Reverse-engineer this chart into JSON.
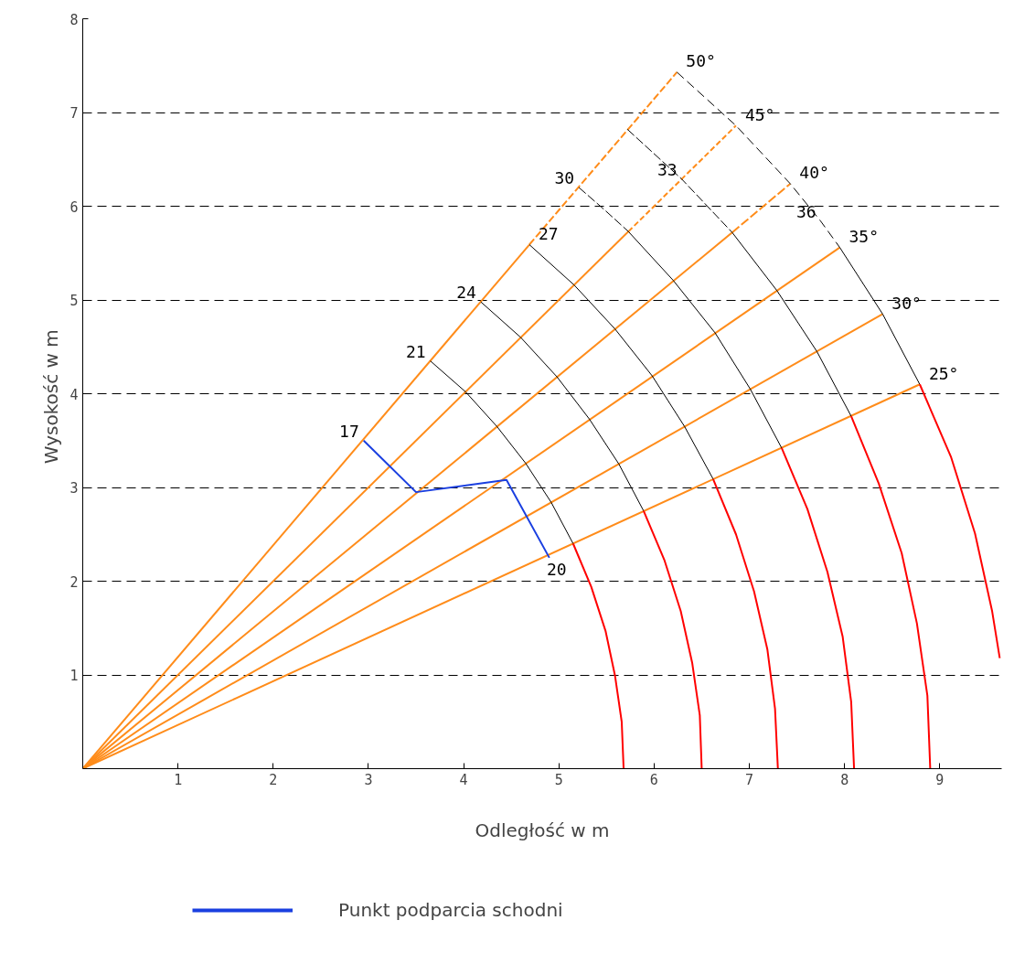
{
  "chart_data": {
    "type": "line",
    "xlabel": "Odległość w m",
    "ylabel": "Wysokość  w m",
    "xlim": [
      0,
      9.65
    ],
    "ylim": [
      0,
      8
    ],
    "xticks": [
      1,
      2,
      3,
      4,
      5,
      6,
      7,
      8,
      9
    ],
    "yticks": [
      1,
      2,
      3,
      4,
      5,
      6,
      7,
      8
    ],
    "grid": "y",
    "legend": "bottom",
    "series": [
      {
        "color": "#ff8c1a",
        "line_style": "solid",
        "x": [
          0,
          8.79
        ],
        "values": [
          0,
          4.1
        ]
      },
      {
        "color": "#ff8c1a",
        "line_style": "solid",
        "x": [
          0,
          8.4
        ],
        "values": [
          0,
          4.85
        ]
      },
      {
        "color": "#ff8c1a",
        "line_style": "solid",
        "x": [
          0,
          7.95
        ],
        "values": [
          0,
          5.56
        ]
      },
      {
        "color": "#ff8c1a",
        "line_style": "solid",
        "x": [
          0,
          6.82
        ],
        "values": [
          0,
          5.72
        ]
      },
      {
        "color": "#ff8c1a",
        "line_style": "dashed",
        "x": [
          6.82,
          7.43
        ],
        "values": [
          5.72,
          6.24
        ]
      },
      {
        "color": "#ff8c1a",
        "line_style": "solid",
        "x": [
          0,
          5.73
        ],
        "values": [
          0,
          5.73
        ]
      },
      {
        "color": "#ff8c1a",
        "line_style": "dashed",
        "x": [
          5.73,
          6.86
        ],
        "values": [
          5.73,
          6.86
        ]
      },
      {
        "color": "#ff8c1a",
        "line_style": "solid",
        "x": [
          0,
          4.69
        ],
        "values": [
          0,
          5.59
        ]
      },
      {
        "color": "#ff8c1a",
        "line_style": "dashed",
        "x": [
          4.69,
          6.24
        ],
        "values": [
          5.59,
          7.43
        ]
      },
      {
        "color": "#000000",
        "line_style": "solid",
        "x": [
          3.65,
          4.02,
          4.35,
          4.65,
          4.92,
          5.15
        ],
        "values": [
          4.35,
          4.02,
          3.65,
          3.26,
          2.84,
          2.4
        ]
      },
      {
        "color": "#000000",
        "line_style": "solid",
        "x": [
          4.18,
          4.6,
          4.98,
          5.32,
          5.63,
          5.89
        ],
        "values": [
          4.98,
          4.6,
          4.18,
          3.73,
          3.25,
          2.75
        ]
      },
      {
        "color": "#000000",
        "line_style": "solid",
        "x": [
          4.69,
          5.16,
          5.59,
          5.98,
          6.32,
          6.62
        ],
        "values": [
          5.59,
          5.16,
          4.69,
          4.19,
          3.65,
          3.09
        ]
      },
      {
        "color": "#000000",
        "line_style": "dashed",
        "x": [
          5.21,
          5.47,
          5.73
        ],
        "values": [
          6.2,
          5.97,
          5.73
        ]
      },
      {
        "color": "#000000",
        "line_style": "solid",
        "x": [
          5.73,
          6.2,
          6.64,
          7.01,
          7.34
        ],
        "values": [
          5.73,
          5.21,
          4.65,
          4.05,
          3.42
        ]
      },
      {
        "color": "#000000",
        "line_style": "dashed",
        "x": [
          5.72,
          6.29,
          6.82
        ],
        "values": [
          6.82,
          6.29,
          5.72
        ]
      },
      {
        "color": "#000000",
        "line_style": "solid",
        "x": [
          6.82,
          7.29,
          7.71,
          8.07
        ],
        "values": [
          5.72,
          5.1,
          4.45,
          3.76
        ]
      },
      {
        "color": "#000000",
        "line_style": "dashed",
        "x": [
          6.24,
          6.86,
          7.43,
          7.75,
          7.95
        ],
        "values": [
          7.43,
          6.86,
          6.24,
          5.84,
          5.56
        ]
      },
      {
        "color": "#000000",
        "line_style": "solid",
        "x": [
          7.95,
          8.4,
          8.79
        ],
        "values": [
          5.56,
          4.85,
          4.1
        ]
      },
      {
        "color": "#ff0000",
        "line_style": "solid",
        "x": [
          5.15,
          5.34,
          5.49,
          5.59,
          5.66,
          5.68
        ],
        "values": [
          2.4,
          1.94,
          1.47,
          0.99,
          0.5,
          0
        ]
      },
      {
        "color": "#ff0000",
        "line_style": "solid",
        "x": [
          5.89,
          6.11,
          6.28,
          6.4,
          6.48,
          6.5
        ],
        "values": [
          2.75,
          2.22,
          1.68,
          1.13,
          0.57,
          0
        ]
      },
      {
        "color": "#ff0000",
        "line_style": "solid",
        "x": [
          6.62,
          6.86,
          7.05,
          7.19,
          7.27,
          7.3
        ],
        "values": [
          3.09,
          2.5,
          1.89,
          1.27,
          0.64,
          0
        ]
      },
      {
        "color": "#ff0000",
        "line_style": "solid",
        "x": [
          7.34,
          7.61,
          7.82,
          7.98,
          8.07,
          8.1
        ],
        "values": [
          3.42,
          2.77,
          2.1,
          1.41,
          0.71,
          0
        ]
      },
      {
        "color": "#ff0000",
        "line_style": "solid",
        "x": [
          8.07,
          8.36,
          8.6,
          8.76,
          8.87,
          8.9
        ],
        "values": [
          3.76,
          3.04,
          2.3,
          1.55,
          0.78,
          0
        ]
      },
      {
        "color": "#ff0000",
        "line_style": "solid",
        "x": [
          8.79,
          9.12,
          9.37,
          9.55,
          9.63
        ],
        "values": [
          4.1,
          3.32,
          2.51,
          1.68,
          1.18
        ]
      },
      {
        "name": "Punkt podparcia schodni",
        "color": "#1a3fe0",
        "line_style": "solid",
        "x": [
          2.95,
          3.5,
          4.45,
          4.9
        ],
        "values": [
          3.5,
          2.95,
          3.08,
          2.25
        ]
      }
    ],
    "annotations": [
      {
        "text": "50°",
        "x": 6.24,
        "y": 7.43
      },
      {
        "text": "45°",
        "x": 6.86,
        "y": 6.86
      },
      {
        "text": "40°",
        "x": 7.43,
        "y": 6.24
      },
      {
        "text": "35°",
        "x": 7.95,
        "y": 5.56
      },
      {
        "text": "30°",
        "x": 8.4,
        "y": 4.85
      },
      {
        "text": "25°",
        "x": 8.79,
        "y": 4.1
      },
      {
        "text": "17",
        "x": 2.95,
        "y": 3.5
      },
      {
        "text": "21",
        "x": 3.65,
        "y": 4.35
      },
      {
        "text": "24",
        "x": 4.18,
        "y": 4.98
      },
      {
        "text": "27",
        "x": 4.69,
        "y": 5.59
      },
      {
        "text": "30",
        "x": 5.21,
        "y": 6.2
      },
      {
        "text": "33",
        "x": 6.29,
        "y": 6.29
      },
      {
        "text": "36",
        "x": 7.75,
        "y": 5.84
      },
      {
        "text": "20",
        "x": 4.9,
        "y": 2.25
      }
    ]
  }
}
